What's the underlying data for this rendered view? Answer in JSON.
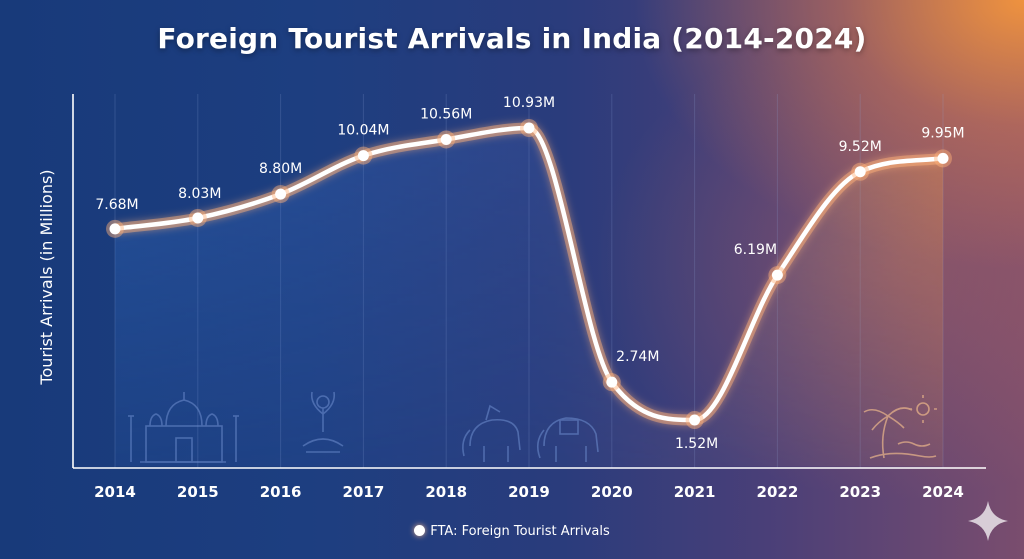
{
  "chart_data": {
    "type": "line",
    "title": "Foreign Tourist Arrivals in India (2014-2024)",
    "ylabel": "Tourist Arrivals (in Millions)",
    "xlabel": "",
    "categories": [
      "2014",
      "2015",
      "2016",
      "2017",
      "2018",
      "2019",
      "2020",
      "2021",
      "2022",
      "2023",
      "2024"
    ],
    "series": [
      {
        "name": "FTA: Foreign Tourist Arrivals",
        "values": [
          7.68,
          8.03,
          8.8,
          10.04,
          10.56,
          10.93,
          2.74,
          1.52,
          6.19,
          9.52,
          9.95
        ],
        "labels": [
          "7.68M",
          "8.03M",
          "8.80M",
          "10.04M",
          "10.56M",
          "10.93M",
          "2.74M",
          "1.52M",
          "6.19M",
          "9.52M",
          "9.95M"
        ]
      }
    ],
    "grid": "vertical",
    "legend_position": "bottom",
    "colors": {
      "line": "#ffffff",
      "glow": "#ffb27a",
      "grid": "#8fa6d6"
    }
  },
  "legend": {
    "text": "FTA: Foreign Tourist Arrivals"
  },
  "decorations": [
    "taj-mahal-icon",
    "yoga-pose-icon",
    "elephant-icon",
    "palm-beach-sun-icon",
    "sparkle-icon"
  ]
}
